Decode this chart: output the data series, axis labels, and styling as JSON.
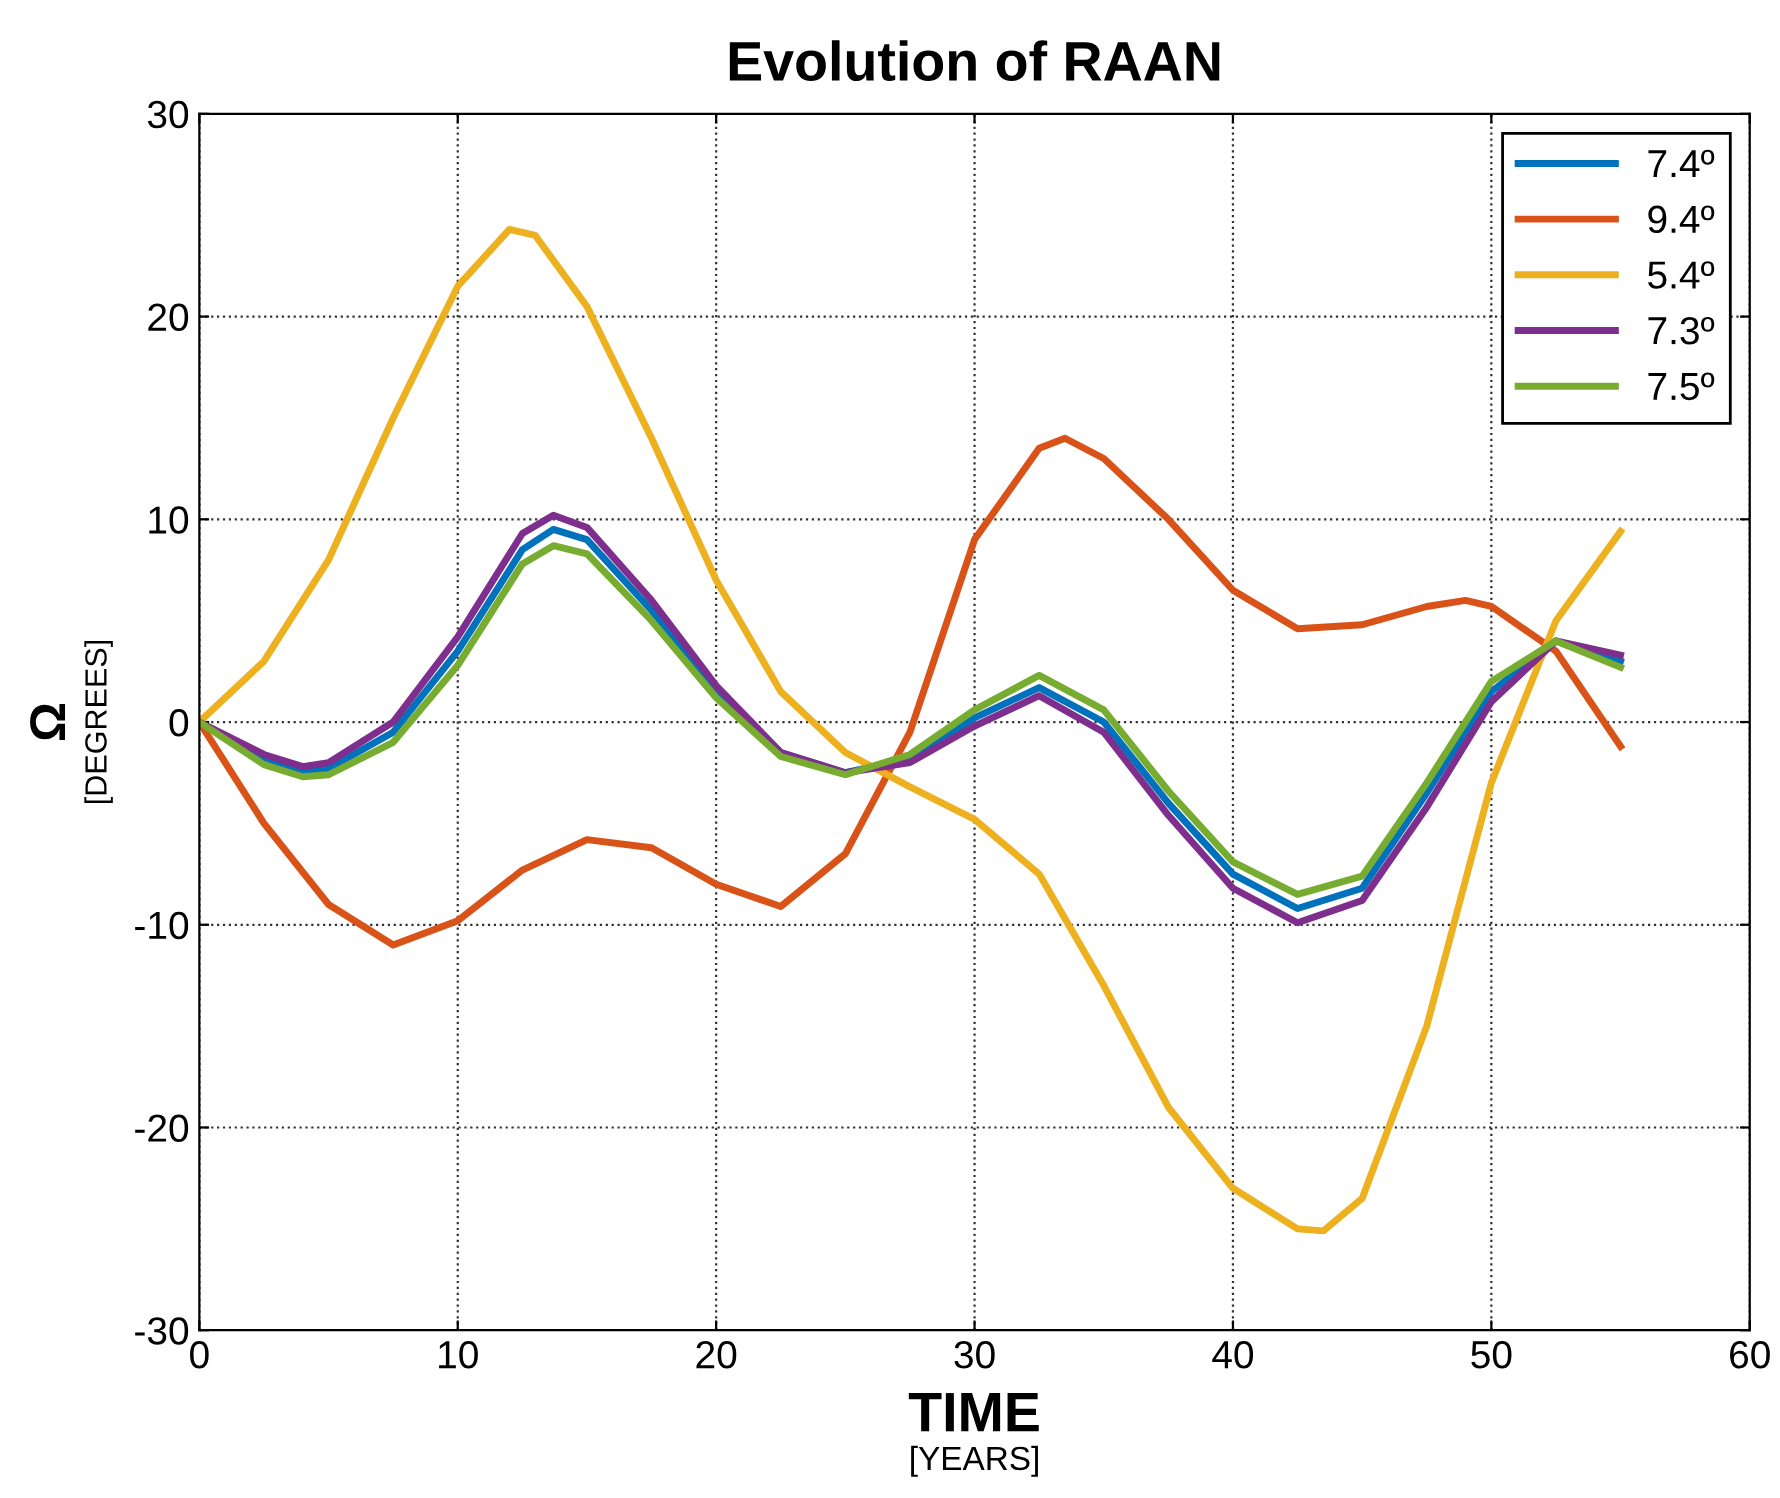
{
  "chart_data": {
    "type": "line",
    "title": "Evolution of RAAN",
    "xlabel": "TIME\n[YEARS]",
    "ylabel": "Ω\n[DEGREES]",
    "xlim": [
      0,
      60
    ],
    "xticks": [
      0,
      10,
      20,
      30,
      40,
      50,
      60
    ],
    "ylim": [
      -30,
      30
    ],
    "yticks": [
      -30,
      -20,
      -10,
      0,
      10,
      20,
      30
    ],
    "grid": true,
    "legend": "top right",
    "line_style": "solid",
    "marker": "none",
    "series": [
      {
        "name": "7.4º",
        "color": "#0072bd",
        "x": [
          0,
          2.5,
          4,
          5,
          7.5,
          10,
          12.5,
          13.7,
          15,
          17.5,
          20,
          22.5,
          25,
          27.5,
          30,
          32.5,
          35,
          37.5,
          40,
          42.5,
          45,
          47.5,
          50,
          52.5,
          55
        ],
        "values": [
          0,
          -1.8,
          -2.4,
          -2.3,
          -0.5,
          3.5,
          8.5,
          9.5,
          9,
          5.5,
          1.5,
          -1.5,
          -2.5,
          -1.8,
          0.2,
          1.7,
          0,
          -4,
          -7.5,
          -9.2,
          -8.2,
          -3.5,
          1.5,
          4,
          3
        ]
      },
      {
        "name": "9.4º",
        "color": "#d95319",
        "x": [
          0,
          2.5,
          5,
          7.5,
          10,
          12.5,
          15,
          17.5,
          20,
          22.5,
          25,
          27.5,
          30,
          32.5,
          33.5,
          35,
          37.5,
          40,
          42.5,
          45,
          47.5,
          49,
          50,
          52.5,
          55
        ],
        "values": [
          0,
          -5,
          -9,
          -11,
          -9.8,
          -7.3,
          -5.8,
          -6.2,
          -8,
          -9.1,
          -6.5,
          -0.5,
          9,
          13.5,
          14,
          13,
          10,
          6.5,
          4.6,
          4.8,
          5.7,
          6,
          5.7,
          3.5,
          -1.2
        ]
      },
      {
        "name": "5.4º",
        "color": "#edb120",
        "x": [
          0,
          2.5,
          5,
          7.5,
          10,
          12,
          13,
          15,
          17.5,
          20,
          22.5,
          25,
          27.5,
          30,
          32.5,
          35,
          37.5,
          40,
          42.5,
          43.5,
          45,
          47.5,
          50,
          52.5,
          55
        ],
        "values": [
          0,
          3,
          8,
          15,
          21.5,
          24.3,
          24,
          20.5,
          14,
          7,
          1.5,
          -1.5,
          -3.2,
          -4.8,
          -7.5,
          -13,
          -19,
          -23,
          -25,
          -25.1,
          -23.5,
          -15,
          -3,
          5,
          9.4
        ]
      },
      {
        "name": "7.3º",
        "color": "#7e2f8e",
        "x": [
          0,
          2.5,
          4,
          5,
          7.5,
          10,
          12.5,
          13.7,
          15,
          17.5,
          20,
          22.5,
          25,
          27.5,
          30,
          32.5,
          35,
          37.5,
          40,
          42.5,
          45,
          47.5,
          50,
          52.5,
          55
        ],
        "values": [
          0,
          -1.6,
          -2.2,
          -2,
          0,
          4.2,
          9.3,
          10.2,
          9.6,
          6,
          1.8,
          -1.5,
          -2.5,
          -2,
          -0.2,
          1.3,
          -0.5,
          -4.6,
          -8.2,
          -9.9,
          -8.8,
          -4.2,
          1,
          4,
          3.3
        ]
      },
      {
        "name": "7.5º",
        "color": "#77ac30",
        "x": [
          0,
          2.5,
          4,
          5,
          7.5,
          10,
          12.5,
          13.7,
          15,
          17.5,
          20,
          22.5,
          25,
          27.5,
          30,
          32.5,
          35,
          37.5,
          40,
          42.5,
          45,
          47.5,
          50,
          52.5,
          55
        ],
        "values": [
          0,
          -2.1,
          -2.7,
          -2.6,
          -1,
          2.8,
          7.8,
          8.7,
          8.3,
          5,
          1.2,
          -1.7,
          -2.6,
          -1.6,
          0.6,
          2.3,
          0.6,
          -3.4,
          -6.9,
          -8.5,
          -7.6,
          -3,
          2,
          4,
          2.7
        ]
      }
    ]
  }
}
